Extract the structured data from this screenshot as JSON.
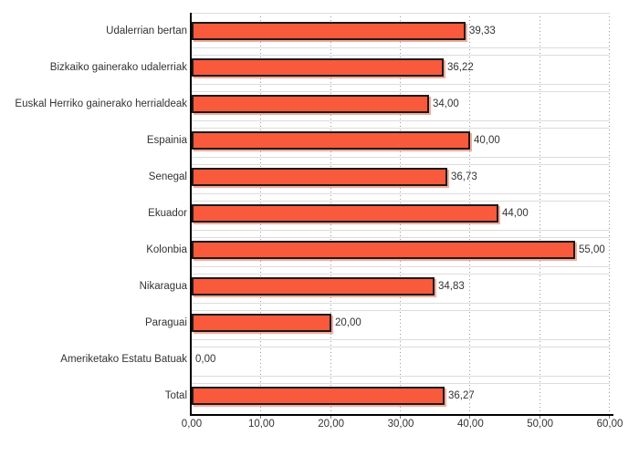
{
  "chart_data": {
    "type": "bar",
    "orientation": "horizontal",
    "title": "",
    "xlabel": "",
    "ylabel": "",
    "legend": "none",
    "grid": "vertical-dotted",
    "categories": [
      "Udalerrian bertan",
      "Bizkaiko gainerako udalerriak",
      "Euskal Herriko gainerako herrialdeak",
      "Espainia",
      "Senegal",
      "Ekuador",
      "Kolonbia",
      "Nikaragua",
      "Paraguai",
      "Ameriketako Estatu Batuak",
      "Total"
    ],
    "values": [
      39.33,
      36.22,
      34.0,
      40.0,
      36.73,
      44.0,
      55.0,
      34.83,
      20.0,
      0.0,
      36.27
    ],
    "value_labels": [
      "39,33",
      "36,22",
      "34,00",
      "40,00",
      "36,73",
      "44,00",
      "55,00",
      "34,83",
      "20,00",
      "0,00",
      "36,27"
    ],
    "xlim": [
      0,
      60
    ],
    "x_ticks": [
      0,
      10,
      20,
      30,
      40,
      50,
      60
    ],
    "x_tick_labels": [
      "0,00",
      "10,00",
      "20,00",
      "30,00",
      "40,00",
      "50,00",
      "60,00"
    ],
    "colors": {
      "bar_fill": "#fa5a3c",
      "bar_border": "#1a1a1a",
      "bar_shadow": "#f5ab9b",
      "gridline": "#999999",
      "row_line": "#dcdcdc",
      "axis": "#000000",
      "text": "#333333",
      "background": "#ffffff"
    }
  }
}
